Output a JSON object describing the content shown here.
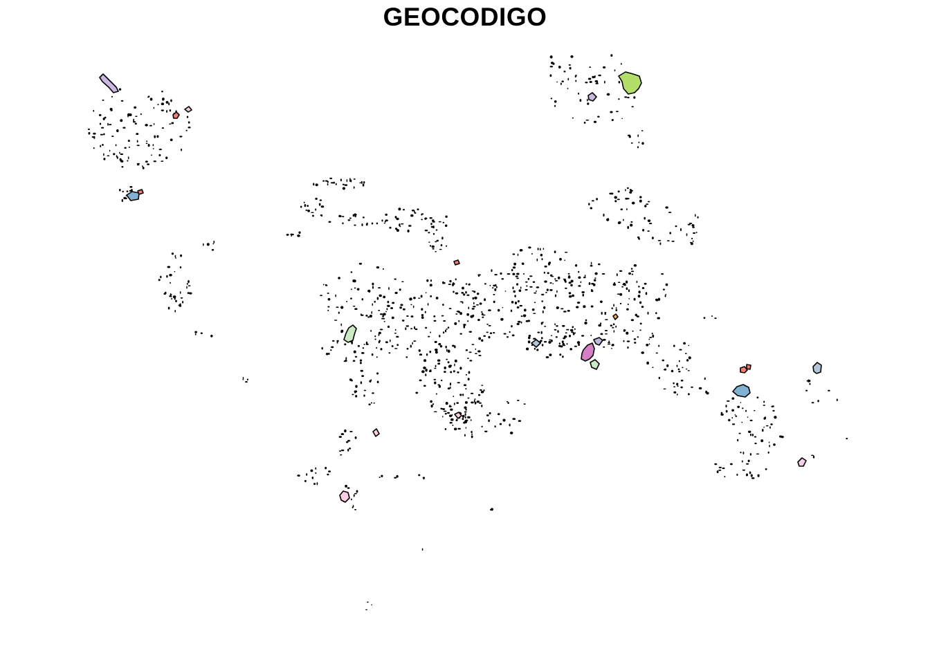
{
  "map": {
    "title": "GEOCODIGO",
    "fill_colors": {
      "lilac": "#C9B8E0",
      "light_blue": "#80B1D3",
      "salmon": "#FB8072",
      "yellow_green": "#B3DE69",
      "pale_green": "#CCEBC5",
      "pink_purple": "#D57FC7",
      "lavender": "#BEBADA",
      "light_pink": "#FCCDE5",
      "peach": "#FDB462",
      "grey_blue": "#B3C6D9",
      "orange": "#FDB462"
    }
  }
}
